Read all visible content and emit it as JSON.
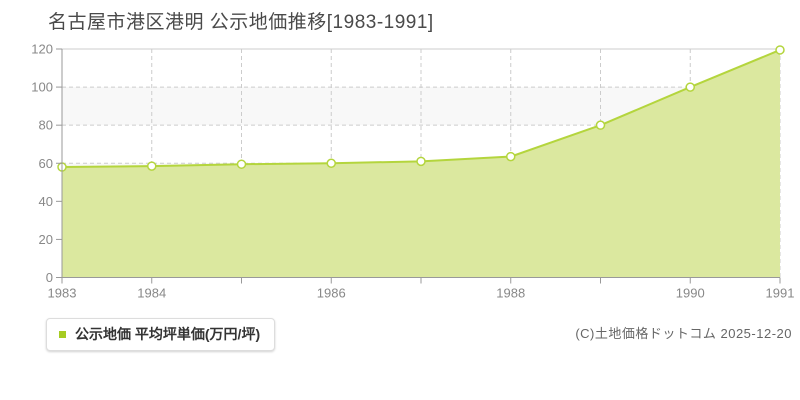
{
  "title": "名古屋市港区港明 公示地価推移[1983-1991]",
  "legend": {
    "label": "公示地価 平均坪単価(万円/坪)",
    "marker_color": "#a6cc22"
  },
  "footer": {
    "copyright": "(C)土地価格ドットコム 2025-12-20"
  },
  "chart_data": {
    "type": "area",
    "title": "名古屋市港区港明 公示地価推移[1983-1991]",
    "x": [
      1983,
      1984,
      1985,
      1986,
      1987,
      1988,
      1989,
      1990,
      1991
    ],
    "series": [
      {
        "name": "公示地価 平均坪単価(万円/坪)",
        "values": [
          58,
          58.5,
          59.5,
          60,
          61,
          63.5,
          80,
          100,
          119.5
        ]
      }
    ],
    "xlabel": "",
    "ylabel": "",
    "ylim": [
      0,
      120
    ],
    "yticks": [
      0,
      20,
      40,
      60,
      80,
      100,
      120
    ],
    "xtick_labels_shown": [
      "1983",
      "1984",
      "1986",
      "1988",
      "1990",
      "1991"
    ],
    "legend_position": "bottom-left",
    "grid": "dashed",
    "colors": {
      "line": "#b4d53d",
      "fill": "#dbe89f",
      "marker_fill": "#ffffff",
      "marker_stroke": "#b4d53d",
      "grid_line": "#cccccc",
      "band": "#f8f8f8",
      "axis": "#999999",
      "tick_text": "#888888"
    }
  }
}
